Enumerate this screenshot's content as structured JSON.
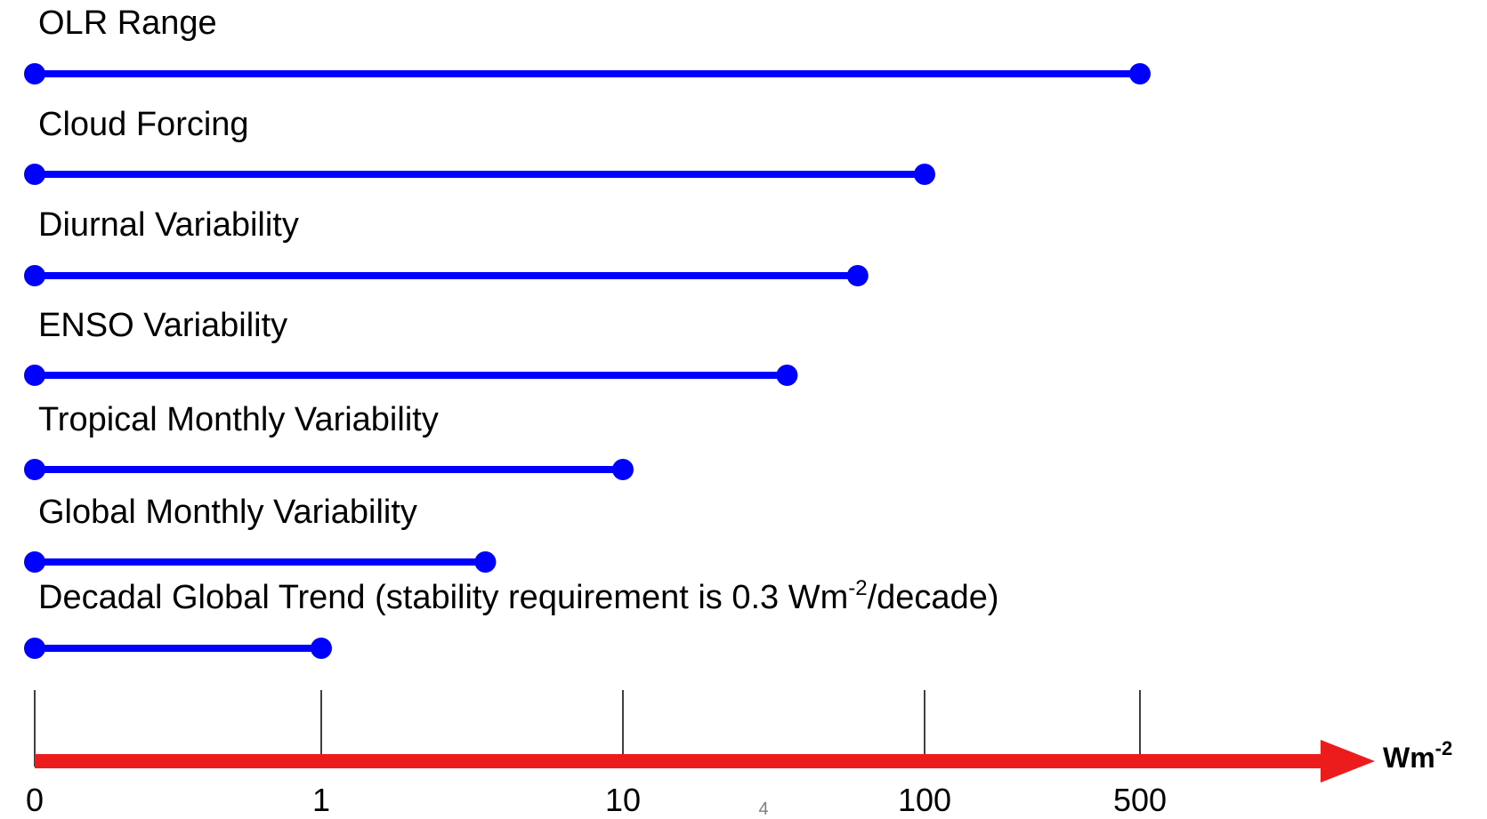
{
  "chart_data": {
    "type": "range-bar",
    "x_scale": "log-like",
    "colors": {
      "bar": "#0000ff",
      "axis": "#ed1c1c",
      "tick": "#000000"
    },
    "axis": {
      "unit_base": "Wm",
      "unit_exp": "-2",
      "ticks": [
        {
          "value": 0,
          "label": "0"
        },
        {
          "value": 1,
          "label": "1"
        },
        {
          "value": 10,
          "label": "10"
        },
        {
          "value": 100,
          "label": "100"
        },
        {
          "value": 500,
          "label": "500"
        }
      ]
    },
    "series": [
      {
        "name": "OLR Range",
        "min": 0,
        "max": 500
      },
      {
        "name": "Cloud Forcing",
        "min": 0,
        "max": 100
      },
      {
        "name": "Diurnal Variability",
        "min": 0,
        "max": 60
      },
      {
        "name": "ENSO Variability",
        "min": 0,
        "max": 35
      },
      {
        "name": "Tropical Monthly Variability",
        "min": 0,
        "max": 10
      },
      {
        "name": "Global Monthly Variability",
        "min": 0,
        "max": 3.5
      },
      {
        "name": "Decadal Global Trend",
        "min": 0,
        "max": 1,
        "label_parts": [
          "Decadal Global Trend (stability requirement is 0.3 Wm",
          "-2",
          "/decade)"
        ]
      }
    ]
  },
  "page_number": "4"
}
